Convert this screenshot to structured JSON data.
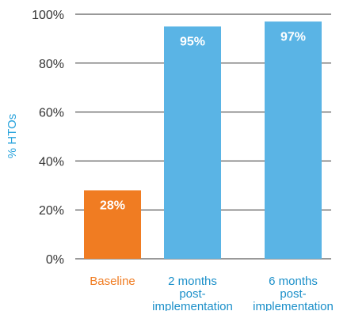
{
  "chart_data": {
    "type": "bar",
    "ylabel": "% HTOs",
    "ylim": [
      0,
      100
    ],
    "yticks": [
      0,
      20,
      40,
      60,
      80,
      100
    ],
    "ytick_labels": [
      "0%",
      "20%",
      "40%",
      "60%",
      "80%",
      "100%"
    ],
    "grid": "horizontal",
    "categories": [
      [
        "Baseline"
      ],
      [
        "2 months",
        "post-",
        "implementation"
      ],
      [
        "6 months",
        "post-",
        "implementation"
      ]
    ],
    "values": [
      28,
      95,
      97
    ],
    "data_labels": [
      "28%",
      "95%",
      "97%"
    ],
    "colors": [
      "#f07c22",
      "#5ab4e5",
      "#5ab4e5"
    ],
    "category_label_colors": [
      "#f07c22",
      "#1a8fc9",
      "#1a8fc9"
    ]
  }
}
